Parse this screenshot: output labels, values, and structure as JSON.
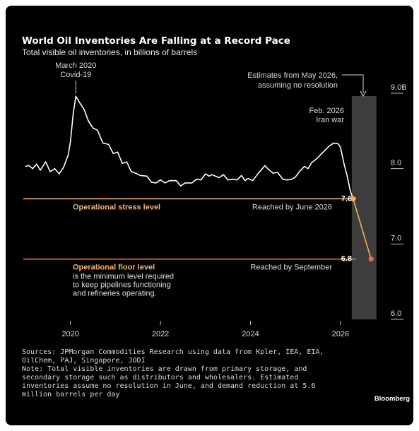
{
  "chart_data": {
    "type": "line",
    "title": "World Oil Inventories Are Falling at a Record Pace",
    "subtitle": "Total visible oil inventories, in billions of barrels",
    "x_ticks": [
      "2020",
      "2022",
      "2024",
      "2026"
    ],
    "x_tick_values": [
      2020,
      2022,
      2024,
      2026
    ],
    "y_ticks": [
      "9.0B",
      "8.0",
      "7.0",
      "6.0"
    ],
    "y_tick_values": [
      9.0,
      8.0,
      7.0,
      6.0
    ],
    "xlim": [
      2019.0,
      2026.85
    ],
    "ylim": [
      6.0,
      9.0
    ],
    "grid": false,
    "series": [
      {
        "data": [
          [
            2019.0,
            8.03
          ],
          [
            2019.08,
            8.04
          ],
          [
            2019.16,
            8.0
          ],
          [
            2019.25,
            8.06
          ],
          [
            2019.33,
            7.98
          ],
          [
            2019.45,
            8.09
          ],
          [
            2019.55,
            7.96
          ],
          [
            2019.65,
            8.0
          ],
          [
            2019.75,
            7.93
          ],
          [
            2019.85,
            8.02
          ],
          [
            2019.95,
            8.18
          ],
          [
            2020.0,
            8.36
          ],
          [
            2020.06,
            8.72
          ],
          [
            2020.12,
            8.96
          ],
          [
            2020.2,
            8.88
          ],
          [
            2020.3,
            8.79
          ],
          [
            2020.4,
            8.63
          ],
          [
            2020.5,
            8.54
          ],
          [
            2020.6,
            8.51
          ],
          [
            2020.72,
            8.34
          ],
          [
            2020.85,
            8.32
          ],
          [
            2020.95,
            8.2
          ],
          [
            2021.05,
            8.22
          ],
          [
            2021.15,
            8.07
          ],
          [
            2021.25,
            8.09
          ],
          [
            2021.35,
            7.96
          ],
          [
            2021.45,
            7.94
          ],
          [
            2021.55,
            7.91
          ],
          [
            2021.7,
            7.9
          ],
          [
            2021.8,
            7.82
          ],
          [
            2021.9,
            7.81
          ],
          [
            2022.0,
            7.85
          ],
          [
            2022.1,
            7.81
          ],
          [
            2022.2,
            7.84
          ],
          [
            2022.35,
            7.84
          ],
          [
            2022.45,
            7.77
          ],
          [
            2022.55,
            7.81
          ],
          [
            2022.7,
            7.81
          ],
          [
            2022.8,
            7.86
          ],
          [
            2022.9,
            7.85
          ],
          [
            2023.0,
            7.93
          ],
          [
            2023.08,
            7.9
          ],
          [
            2023.15,
            7.92
          ],
          [
            2023.3,
            7.88
          ],
          [
            2023.4,
            7.92
          ],
          [
            2023.5,
            7.85
          ],
          [
            2023.6,
            7.86
          ],
          [
            2023.7,
            7.85
          ],
          [
            2023.8,
            7.91
          ],
          [
            2023.88,
            7.84
          ],
          [
            2023.95,
            7.87
          ],
          [
            2024.05,
            7.84
          ],
          [
            2024.15,
            7.92
          ],
          [
            2024.25,
            7.99
          ],
          [
            2024.32,
            8.04
          ],
          [
            2024.4,
            7.99
          ],
          [
            2024.5,
            7.94
          ],
          [
            2024.6,
            7.95
          ],
          [
            2024.72,
            7.86
          ],
          [
            2024.82,
            7.85
          ],
          [
            2024.92,
            7.86
          ],
          [
            2025.0,
            7.89
          ],
          [
            2025.1,
            7.97
          ],
          [
            2025.2,
            8.03
          ],
          [
            2025.28,
            8.0
          ],
          [
            2025.36,
            8.08
          ],
          [
            2025.45,
            8.12
          ],
          [
            2025.55,
            8.18
          ],
          [
            2025.65,
            8.24
          ],
          [
            2025.75,
            8.3
          ],
          [
            2025.85,
            8.34
          ],
          [
            2025.95,
            8.33
          ],
          [
            2026.0,
            8.28
          ],
          [
            2026.08,
            8.06
          ],
          [
            2026.15,
            7.9
          ],
          [
            2026.22,
            7.7
          ],
          [
            2026.28,
            7.6
          ]
        ]
      },
      {
        "data": [
          [
            2026.28,
            7.6
          ],
          [
            2026.68,
            6.8
          ]
        ]
      }
    ],
    "reference_lines": [
      {
        "value": 7.6,
        "label": "Operational stress level",
        "note": "Reached by June 2026",
        "value_label": "7.6"
      },
      {
        "value": 6.8,
        "label": "Operational floor level",
        "description": [
          "is the minimum level required",
          "to keep pipelines functioning",
          "and refineries operating."
        ],
        "note": "Reached by September",
        "value_label": "6.8"
      }
    ],
    "estimate_band": {
      "x_start": 2026.25,
      "x_end": 2026.8,
      "label": [
        "Estimates from May 2026,",
        "assuming no resolution"
      ]
    },
    "annotations": [
      {
        "x": 2020.12,
        "lines": [
          "March 2020",
          "Covid-19"
        ]
      },
      {
        "x": 2025.95,
        "lines": [
          "Feb. 2026",
          "Iran war"
        ]
      }
    ],
    "colors": {
      "line": "#ffffff",
      "stress": "#f2b27a",
      "floor": "#e0704a",
      "estimate": "#f5b060",
      "band": "#3d3d3d"
    }
  },
  "footer": {
    "sources": [
      "Sources: JPMorgan Commodities Research using data from Kpler, IEA, EIA,",
      "OilChem, PAJ, Singapore, JODI",
      "Note: Total visible inventories are drawn from primary storage, and",
      "secondary storage such as distributors and wholesalers. Estimated",
      "inventories assume no resolution in June, and demand reduction at 5.6",
      "million barrels per day"
    ],
    "brand": "Bloomberg"
  }
}
